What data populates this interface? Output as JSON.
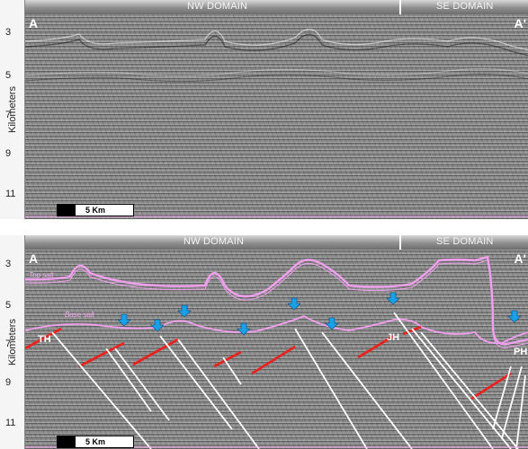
{
  "top_panel": {
    "domain_left": "NW DOMAIN",
    "domain_right": "SE DOMAIN",
    "corner_left": "A",
    "corner_right": "A'",
    "y_axis_label": "Kilometers",
    "y_ticks": [
      "3",
      "5",
      "7",
      "9",
      "11"
    ],
    "scale_label": "5 Km"
  },
  "bottom_panel": {
    "domain_left": "NW DOMAIN",
    "domain_right": "SE DOMAIN",
    "corner_left": "A",
    "corner_right": "A'",
    "y_axis_label": "Kilometers",
    "y_ticks": [
      "3",
      "5",
      "7",
      "9",
      "11"
    ],
    "scale_label": "5 Km",
    "top_salt_label": "Top salt",
    "base_salt_label": "Base salt",
    "structure_labels": [
      "TH",
      "JH",
      "PH"
    ]
  },
  "colors": {
    "salt_horizon": "#f29ff0",
    "fault_red": "#e8231f",
    "fault_white": "#ffffff",
    "arrow_blue": "#1aa0e6"
  }
}
